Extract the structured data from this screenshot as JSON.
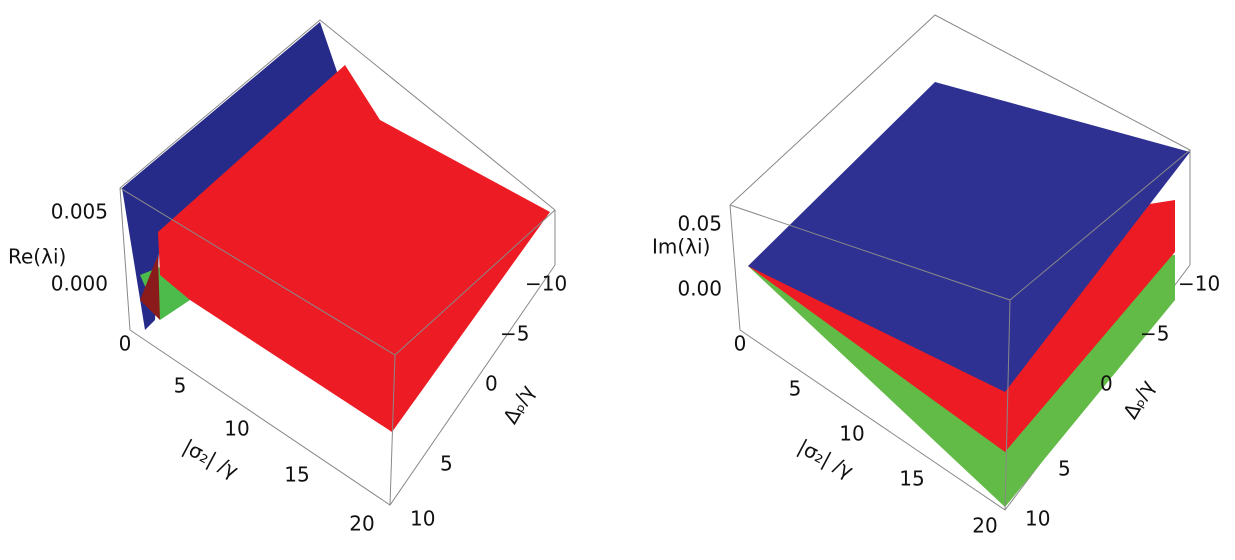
{
  "panels": [
    {
      "zlabel": "Re(λi)",
      "zticks": [
        "0.005",
        "0.000"
      ],
      "xlabel": "|σ₂| /γ",
      "xticks": [
        "0",
        "5",
        "10",
        "15",
        "20"
      ],
      "ylabel": "Δₚ/γ",
      "yticks": [
        "10",
        "5",
        "0",
        "−5",
        "−10"
      ]
    },
    {
      "zlabel": "Im(λi)",
      "zticks": [
        "0.05",
        "0.00"
      ],
      "xlabel": "|σ₂| /γ",
      "xticks": [
        "0",
        "5",
        "10",
        "15",
        "20"
      ],
      "ylabel": "Δₚ/γ",
      "yticks": [
        "10",
        "5",
        "0",
        "−5",
        "−10"
      ]
    }
  ]
}
